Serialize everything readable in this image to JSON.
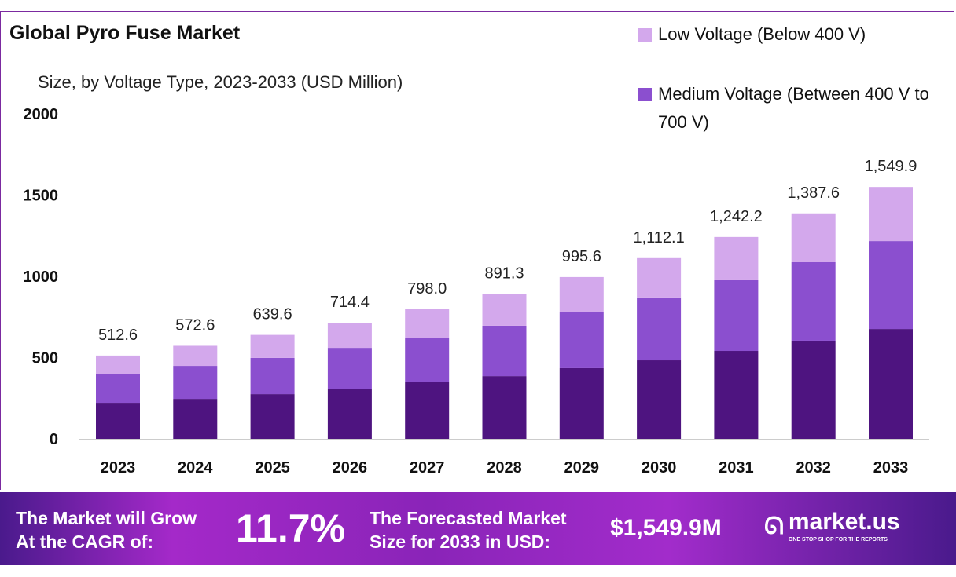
{
  "chart_data": {
    "type": "bar",
    "stacked": true,
    "title": "Global Pyro Fuse Market",
    "subtitle": "Size, by Voltage Type, 2023-2033 (USD Million)",
    "categories": [
      "2023",
      "2024",
      "2025",
      "2026",
      "2027",
      "2028",
      "2029",
      "2030",
      "2031",
      "2032",
      "2033"
    ],
    "totals": [
      "512.6",
      "572.6",
      "639.6",
      "714.4",
      "798.0",
      "891.3",
      "995.6",
      "1,112.1",
      "1,242.2",
      "1,387.6",
      "1,549.9"
    ],
    "series": [
      {
        "color": "#4e1480",
        "values": [
          222,
          246,
          275,
          309,
          348,
          386,
          435,
          483,
          541,
          604,
          676
        ]
      },
      {
        "name": "Medium Voltage (Between 400 V to 700 V)",
        "color": "#8b4fcf",
        "values": [
          179,
          203,
          223,
          251,
          275,
          310,
          343,
          387,
          435,
          483,
          541
        ]
      },
      {
        "name": "Low Voltage (Below 400 V)",
        "color": "#d3a8ec",
        "values": [
          111.6,
          123.6,
          141.6,
          154.4,
          175.0,
          195.3,
          217.6,
          242.1,
          266.2,
          300.6,
          332.9
        ]
      }
    ],
    "yticks": [
      "0",
      "500",
      "1000",
      "1500",
      "2000"
    ],
    "ylim": [
      0,
      2000
    ],
    "grid": false,
    "legend_position": "top-right"
  },
  "legend": [
    {
      "label": "Low Voltage (Below 400 V)",
      "color": "#d3a8ec"
    },
    {
      "label": "Medium Voltage (Between 400 V to 700 V)",
      "color": "#8b4fcf"
    }
  ],
  "footer": {
    "cagr_text_1": "The Market will Grow",
    "cagr_text_2": "At the CAGR of:",
    "cagr_value": "11.7%",
    "forecast_text_1": "The Forecasted Market",
    "forecast_text_2": "Size for 2033 in USD:",
    "forecast_value": "$1,549.9M",
    "brand": "market.us",
    "tagline": "ONE STOP SHOP FOR THE REPORTS"
  }
}
